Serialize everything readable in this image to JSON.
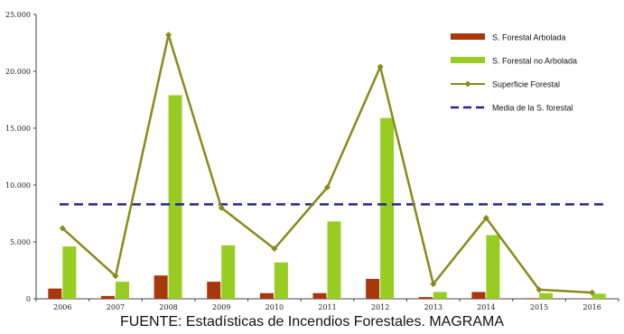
{
  "caption": "FUENTE: Estadísticas de Incendios Forestales. MAGRAMA",
  "chart_data": {
    "type": "bar",
    "categories": [
      "2006",
      "2007",
      "2008",
      "2009",
      "2010",
      "2011",
      "2012",
      "2013",
      "2014",
      "2015",
      "2016"
    ],
    "ylim": [
      0,
      25000
    ],
    "yticks": [
      0,
      5000,
      10000,
      15000,
      20000,
      25000
    ],
    "ytick_labels": [
      "0",
      "5.000",
      "10.000",
      "15.000",
      "20.000",
      "25.000"
    ],
    "series": [
      {
        "name": "S. Forestal Arbolada",
        "kind": "bar",
        "color": "#a9370b",
        "values": [
          900,
          250,
          2050,
          1500,
          500,
          500,
          1750,
          150,
          600,
          50,
          30
        ]
      },
      {
        "name": "S. Forestal no Arbolada",
        "kind": "bar",
        "color": "#99cc22",
        "values": [
          4600,
          1500,
          17900,
          4700,
          3200,
          6800,
          15900,
          600,
          5600,
          500,
          450
        ]
      },
      {
        "name": "Superficie Forestal",
        "kind": "line",
        "color": "#8a8a1a",
        "values": [
          6200,
          2000,
          23200,
          8000,
          4400,
          9800,
          20400,
          1300,
          7100,
          800,
          550
        ]
      },
      {
        "name": "Media de la S. forestal",
        "kind": "hline",
        "color": "#1f2a8c",
        "value": 8300
      }
    ],
    "legend_position": "top-right",
    "grid": false
  }
}
